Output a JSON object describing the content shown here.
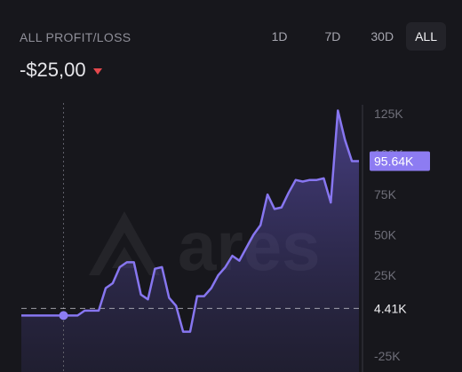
{
  "header": {
    "title": "ALL PROFIT/LOSS",
    "value": "-$25,00",
    "trend": "down"
  },
  "range_tabs": [
    {
      "label": "1D",
      "active": false
    },
    {
      "label": "7D",
      "active": false
    },
    {
      "label": "30D",
      "active": false
    },
    {
      "label": "ALL",
      "active": true
    }
  ],
  "watermark": {
    "text": "ares"
  },
  "colors": {
    "background": "#17171c",
    "line": "#8776f0",
    "current_badge": "#8d7cf2",
    "negative": "#e5484d",
    "axis_text": "#6e6e78"
  },
  "chart_data": {
    "type": "area",
    "y_ticks": [
      "125K",
      "100K",
      "75K",
      "50K",
      "25K",
      "-25K"
    ],
    "y_tick_values": [
      125000,
      100000,
      75000,
      50000,
      25000,
      -25000
    ],
    "current_value_label": "95.64K",
    "current_value": 95640,
    "reference_label": "4.41K",
    "reference_value": 4410,
    "ylim": [
      -35000,
      135000
    ],
    "values": [
      0,
      0,
      0,
      0,
      0,
      0,
      0,
      0,
      0,
      3000,
      3000,
      3000,
      17000,
      20000,
      30000,
      33000,
      33000,
      13000,
      10000,
      29000,
      30000,
      11000,
      6000,
      -10000,
      -10000,
      12000,
      12000,
      17000,
      25000,
      30000,
      37000,
      34000,
      42000,
      50000,
      56000,
      75000,
      66000,
      67000,
      76000,
      84000,
      83000,
      84000,
      84000,
      85000,
      70000,
      127000,
      109000,
      95640,
      95640
    ]
  }
}
